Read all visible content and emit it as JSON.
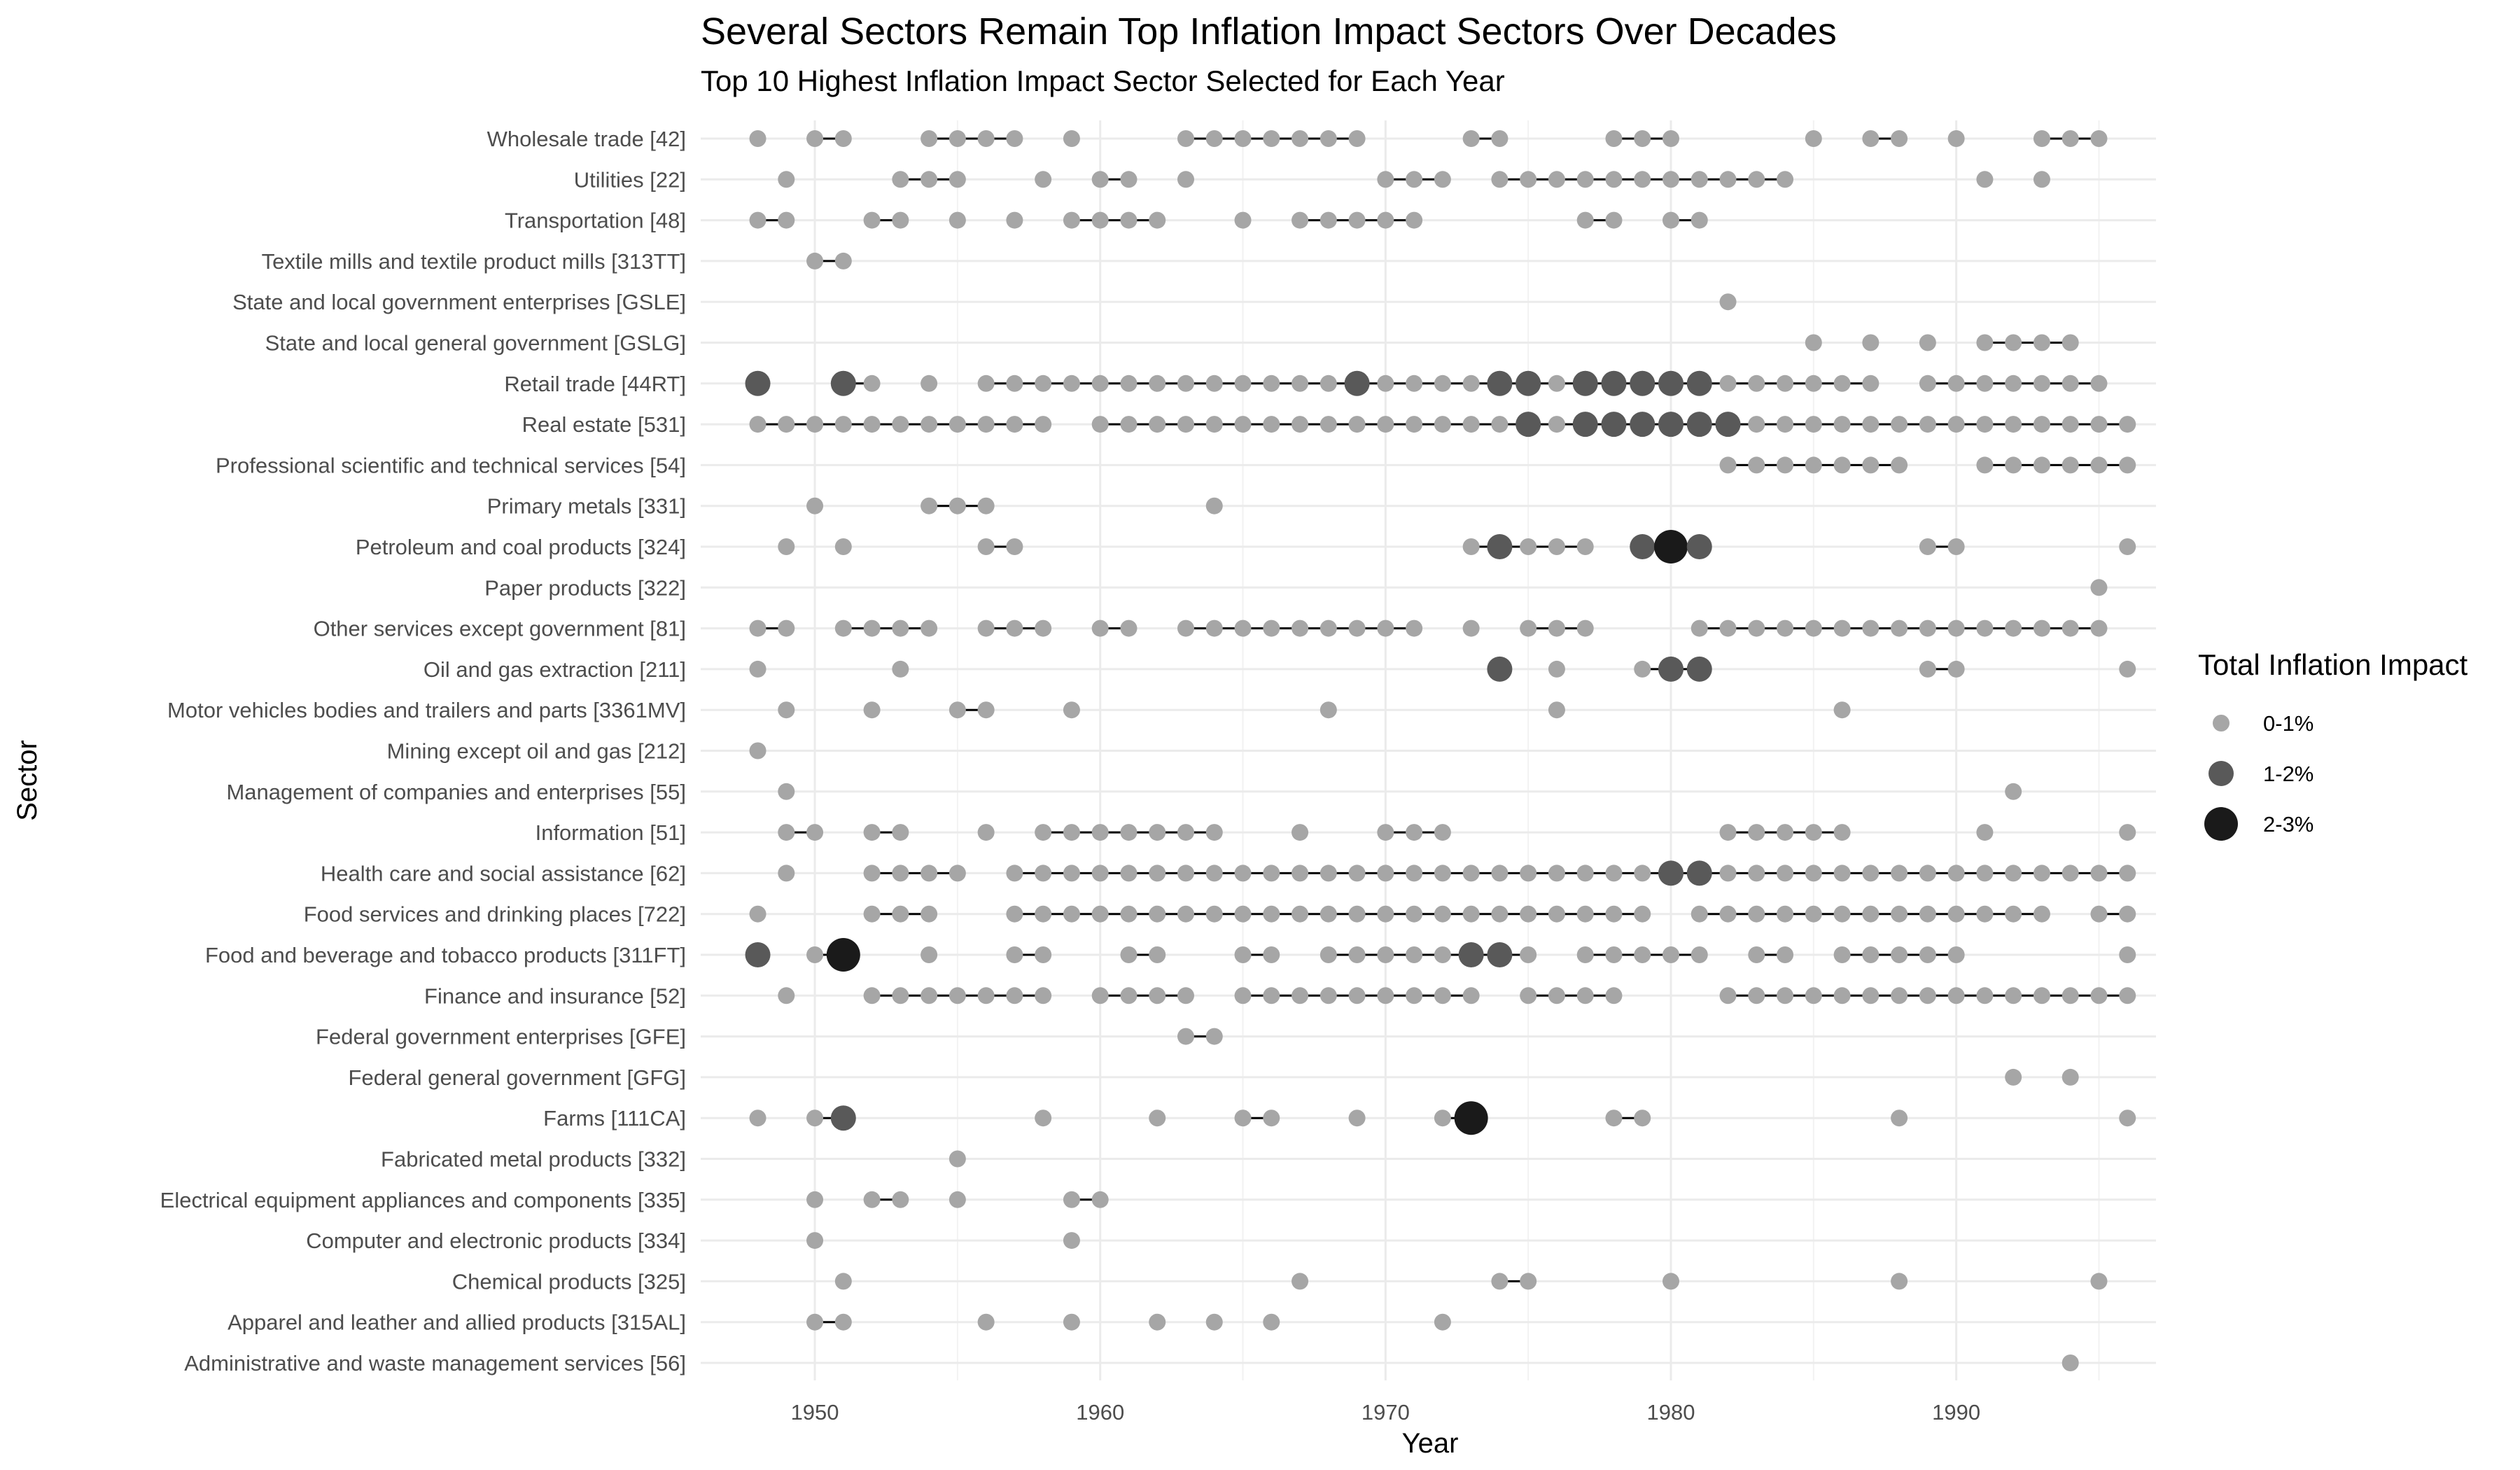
{
  "chart_data": {
    "type": "scatter",
    "title": "Several Sectors Remain Top Inflation Impact Sectors Over Decades",
    "subtitle": "Top 10 Highest Inflation Impact Sector Selected for Each Year",
    "xlabel": "Year",
    "ylabel": "Sector",
    "xlim": [
      1946,
      1997
    ],
    "x_ticks": [
      1950,
      1960,
      1970,
      1980,
      1990
    ],
    "grid": true,
    "legend": {
      "title": "Total Inflation Impact",
      "placement": "right",
      "entries": [
        {
          "label": "0-1%",
          "level": 1
        },
        {
          "label": "1-2%",
          "level": 2
        },
        {
          "label": "2-3%",
          "level": 3
        }
      ]
    },
    "level_colors": {
      "1": "#a6a6a6",
      "2": "#595959",
      "3": "#1a1a1a"
    },
    "sectors": [
      {
        "name": "Wholesale trade  [42]",
        "years": [
          1948,
          1950,
          1951,
          1954,
          1955,
          1956,
          1957,
          1959,
          1963,
          1964,
          1965,
          1966,
          1967,
          1968,
          1969,
          1973,
          1974,
          1978,
          1979,
          1980,
          1985,
          1987,
          1988,
          1990,
          1993,
          1994,
          1995
        ],
        "levels": {}
      },
      {
        "name": "Utilities  [22]",
        "years": [
          1949,
          1953,
          1954,
          1955,
          1958,
          1960,
          1961,
          1963,
          1970,
          1971,
          1972,
          1974,
          1975,
          1976,
          1977,
          1978,
          1979,
          1980,
          1981,
          1982,
          1983,
          1984,
          1991,
          1993
        ],
        "levels": {}
      },
      {
        "name": "Transportation  [48]",
        "years": [
          1948,
          1949,
          1952,
          1953,
          1955,
          1957,
          1959,
          1960,
          1961,
          1962,
          1965,
          1967,
          1968,
          1969,
          1970,
          1971,
          1977,
          1978,
          1980,
          1981
        ],
        "levels": {}
      },
      {
        "name": "Textile mills and textile product mills  [313TT]",
        "years": [
          1950,
          1951
        ],
        "levels": {}
      },
      {
        "name": "State and local government enterprises  [GSLE]",
        "years": [
          1982
        ],
        "levels": {}
      },
      {
        "name": "State and local general government  [GSLG]",
        "years": [
          1985,
          1987,
          1989,
          1991,
          1992,
          1993,
          1994
        ],
        "levels": {}
      },
      {
        "name": "Retail trade  [44RT]",
        "years": [
          1948,
          1951,
          1952,
          1954,
          1956,
          1957,
          1958,
          1959,
          1960,
          1961,
          1962,
          1963,
          1964,
          1965,
          1966,
          1967,
          1968,
          1969,
          1970,
          1971,
          1972,
          1973,
          1974,
          1975,
          1976,
          1977,
          1978,
          1979,
          1980,
          1981,
          1982,
          1983,
          1984,
          1985,
          1986,
          1987,
          1989,
          1990,
          1991,
          1992,
          1993,
          1994,
          1995
        ],
        "levels": {
          "1948": 2,
          "1951": 2,
          "1969": 2,
          "1974": 2,
          "1975": 2,
          "1977": 2,
          "1978": 2,
          "1979": 2,
          "1980": 2,
          "1981": 2
        }
      },
      {
        "name": "Real estate  [531]",
        "years": [
          1948,
          1949,
          1950,
          1951,
          1952,
          1953,
          1954,
          1955,
          1956,
          1957,
          1958,
          1960,
          1961,
          1962,
          1963,
          1964,
          1965,
          1966,
          1967,
          1968,
          1969,
          1970,
          1971,
          1972,
          1973,
          1974,
          1975,
          1976,
          1977,
          1978,
          1979,
          1980,
          1981,
          1982,
          1983,
          1984,
          1985,
          1986,
          1987,
          1988,
          1989,
          1990,
          1991,
          1992,
          1993,
          1994,
          1995,
          1996
        ],
        "levels": {
          "1975": 2,
          "1977": 2,
          "1978": 2,
          "1979": 2,
          "1980": 2,
          "1981": 2,
          "1982": 2
        }
      },
      {
        "name": "Professional scientific and technical services  [54]",
        "years": [
          1982,
          1983,
          1984,
          1985,
          1986,
          1987,
          1988,
          1991,
          1992,
          1993,
          1994,
          1995,
          1996
        ],
        "levels": {}
      },
      {
        "name": "Primary metals  [331]",
        "years": [
          1950,
          1954,
          1955,
          1956,
          1964
        ],
        "levels": {}
      },
      {
        "name": "Petroleum and coal products  [324]",
        "years": [
          1949,
          1951,
          1956,
          1957,
          1973,
          1974,
          1975,
          1976,
          1977,
          1979,
          1980,
          1981,
          1989,
          1990,
          1996
        ],
        "levels": {
          "1974": 2,
          "1979": 2,
          "1980": 3,
          "1981": 2
        }
      },
      {
        "name": "Paper products  [322]",
        "years": [
          1995
        ],
        "levels": {}
      },
      {
        "name": "Other services except government  [81]",
        "years": [
          1948,
          1949,
          1951,
          1952,
          1953,
          1954,
          1956,
          1957,
          1958,
          1960,
          1961,
          1963,
          1964,
          1965,
          1966,
          1967,
          1968,
          1969,
          1970,
          1971,
          1973,
          1975,
          1976,
          1977,
          1981,
          1982,
          1983,
          1984,
          1985,
          1986,
          1987,
          1988,
          1989,
          1990,
          1991,
          1992,
          1993,
          1994,
          1995
        ],
        "levels": {}
      },
      {
        "name": "Oil and gas extraction  [211]",
        "years": [
          1948,
          1953,
          1974,
          1976,
          1979,
          1980,
          1981,
          1989,
          1990,
          1996
        ],
        "levels": {
          "1974": 2,
          "1980": 2,
          "1981": 2
        }
      },
      {
        "name": "Motor vehicles bodies and trailers and parts  [3361MV]",
        "years": [
          1949,
          1952,
          1955,
          1956,
          1959,
          1968,
          1976,
          1986
        ],
        "levels": {}
      },
      {
        "name": "Mining except oil and gas  [212]",
        "years": [
          1948
        ],
        "levels": {}
      },
      {
        "name": "Management of companies and enterprises  [55]",
        "years": [
          1949,
          1992
        ],
        "levels": {}
      },
      {
        "name": "Information  [51]",
        "years": [
          1949,
          1950,
          1952,
          1953,
          1956,
          1958,
          1959,
          1960,
          1961,
          1962,
          1963,
          1964,
          1967,
          1970,
          1971,
          1972,
          1982,
          1983,
          1984,
          1985,
          1986,
          1991,
          1996
        ],
        "levels": {}
      },
      {
        "name": "Health care and social assistance  [62]",
        "years": [
          1949,
          1952,
          1953,
          1954,
          1955,
          1957,
          1958,
          1959,
          1960,
          1961,
          1962,
          1963,
          1964,
          1965,
          1966,
          1967,
          1968,
          1969,
          1970,
          1971,
          1972,
          1973,
          1974,
          1975,
          1976,
          1977,
          1978,
          1979,
          1980,
          1981,
          1982,
          1983,
          1984,
          1985,
          1986,
          1987,
          1988,
          1989,
          1990,
          1991,
          1992,
          1993,
          1994,
          1995,
          1996
        ],
        "levels": {
          "1980": 2,
          "1981": 2
        }
      },
      {
        "name": "Food services and drinking places  [722]",
        "years": [
          1948,
          1952,
          1953,
          1954,
          1957,
          1958,
          1959,
          1960,
          1961,
          1962,
          1963,
          1964,
          1965,
          1966,
          1967,
          1968,
          1969,
          1970,
          1971,
          1972,
          1973,
          1974,
          1975,
          1976,
          1977,
          1978,
          1979,
          1981,
          1982,
          1983,
          1984,
          1985,
          1986,
          1987,
          1988,
          1989,
          1990,
          1991,
          1992,
          1993,
          1995,
          1996
        ],
        "levels": {}
      },
      {
        "name": "Food and beverage and tobacco products  [311FT]",
        "years": [
          1948,
          1950,
          1951,
          1954,
          1957,
          1958,
          1961,
          1962,
          1965,
          1966,
          1968,
          1969,
          1970,
          1971,
          1972,
          1973,
          1974,
          1975,
          1977,
          1978,
          1979,
          1980,
          1981,
          1983,
          1984,
          1986,
          1987,
          1988,
          1989,
          1990,
          1996
        ],
        "levels": {
          "1948": 2,
          "1951": 3,
          "1973": 2,
          "1974": 2
        }
      },
      {
        "name": "Finance and insurance  [52]",
        "years": [
          1949,
          1952,
          1953,
          1954,
          1955,
          1956,
          1957,
          1958,
          1960,
          1961,
          1962,
          1963,
          1965,
          1966,
          1967,
          1968,
          1969,
          1970,
          1971,
          1972,
          1973,
          1975,
          1976,
          1977,
          1978,
          1982,
          1983,
          1984,
          1985,
          1986,
          1987,
          1988,
          1989,
          1990,
          1991,
          1992,
          1993,
          1994,
          1995,
          1996
        ],
        "levels": {}
      },
      {
        "name": "Federal government enterprises  [GFE]",
        "years": [
          1963,
          1964
        ],
        "levels": {}
      },
      {
        "name": "Federal general government  [GFG]",
        "years": [
          1992,
          1994
        ],
        "levels": {}
      },
      {
        "name": "Farms  [111CA]",
        "years": [
          1948,
          1950,
          1951,
          1958,
          1962,
          1965,
          1966,
          1969,
          1972,
          1973,
          1978,
          1979,
          1988,
          1996
        ],
        "levels": {
          "1951": 2,
          "1973": 3
        }
      },
      {
        "name": "Fabricated metal products  [332]",
        "years": [
          1955
        ],
        "levels": {}
      },
      {
        "name": "Electrical equipment appliances and components  [335]",
        "years": [
          1950,
          1952,
          1953,
          1955,
          1959,
          1960
        ],
        "levels": {}
      },
      {
        "name": "Computer and electronic products  [334]",
        "years": [
          1950,
          1959
        ],
        "levels": {}
      },
      {
        "name": "Chemical products  [325]",
        "years": [
          1951,
          1967,
          1974,
          1975,
          1980,
          1988,
          1995
        ],
        "levels": {}
      },
      {
        "name": "Apparel and leather and allied products  [315AL]",
        "years": [
          1950,
          1951,
          1956,
          1959,
          1962,
          1964,
          1966,
          1972
        ],
        "levels": {}
      },
      {
        "name": "Administrative and waste management services  [56]",
        "years": [
          1994
        ],
        "levels": {}
      }
    ]
  }
}
